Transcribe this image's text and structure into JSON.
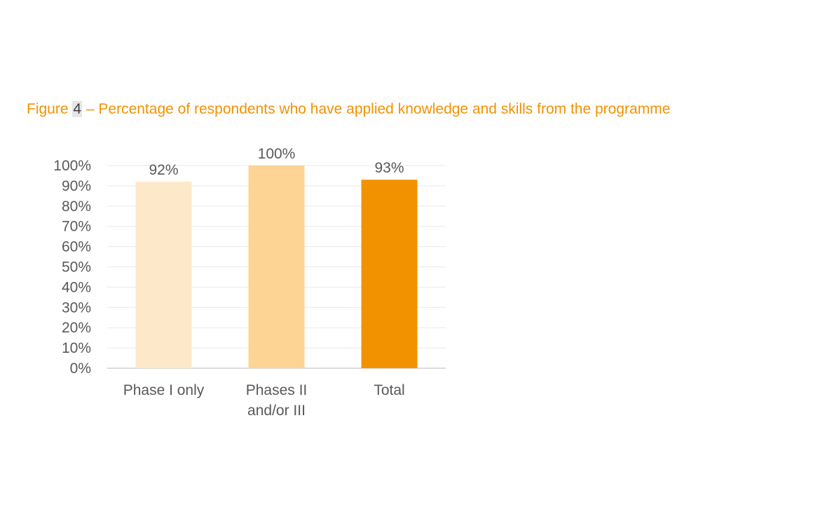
{
  "caption": {
    "prefix": "Figure ",
    "number": "4",
    "text": " – Percentage of respondents who have applied knowledge and skills from the programme"
  },
  "chart_data": {
    "type": "bar",
    "categories": [
      [
        "Phase I only"
      ],
      [
        "Phases II",
        "and/or III"
      ],
      [
        "Total"
      ]
    ],
    "values": [
      92,
      100,
      93
    ],
    "data_labels": [
      "92%",
      "100%",
      "93%"
    ],
    "colors": [
      "#FDE9C9",
      "#FDD494",
      "#F39200"
    ],
    "ylim": [
      0,
      100
    ],
    "yticks": [
      0,
      10,
      20,
      30,
      40,
      50,
      60,
      70,
      80,
      90,
      100
    ],
    "ytick_labels": [
      "0%",
      "10%",
      "20%",
      "30%",
      "40%",
      "50%",
      "60%",
      "70%",
      "80%",
      "90%",
      "100%"
    ],
    "grid": true,
    "legend": "none",
    "colors_meta": {
      "caption": "#F39200",
      "text": "#595959",
      "grid": "#e9e9e9"
    }
  }
}
